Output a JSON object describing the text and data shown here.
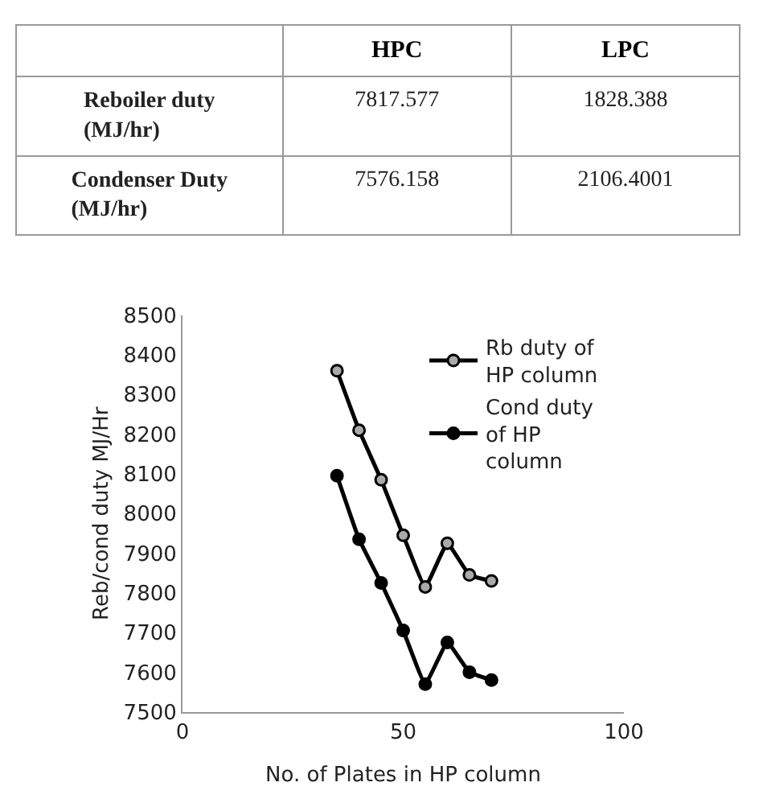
{
  "chart_data": [
    {
      "type": "other",
      "categories": [
        "HPC",
        "LPC"
      ],
      "y_categories": [
        "Reboiler duty\n(MJ/hr)",
        "Condenser Duty\n(MJ/hr)"
      ],
      "cell_labels": [
        [
          "7817.577",
          "1828.388"
        ],
        [
          "7576.158",
          "2106.4001"
        ]
      ]
    },
    {
      "type": "line",
      "xlabel": "No. of Plates in HP column",
      "ylabel": "Reb/cond duty MJ/Hr",
      "x": [
        35,
        40,
        45,
        50,
        55,
        60,
        65,
        70
      ],
      "series": [
        {
          "name": "Rb duty of\nHP column",
          "color": "#000000",
          "values": [
            8360,
            8210,
            8085,
            7945,
            7815,
            7925,
            7845,
            7830
          ]
        },
        {
          "name": "Cond duty\nof HP\ncolumn",
          "color": "#000000",
          "values": [
            8095,
            7935,
            7825,
            7705,
            7570,
            7675,
            7600,
            7580
          ]
        }
      ],
      "xlim": [
        0,
        100
      ],
      "xticks": [
        0,
        50,
        100
      ],
      "ylim": [
        7500,
        8500
      ],
      "yticks": [
        7500,
        7600,
        7700,
        7800,
        7900,
        8000,
        8100,
        8200,
        8300,
        8400,
        8500
      ],
      "legend": "right",
      "marker": "circle",
      "line_style": "solid"
    }
  ]
}
